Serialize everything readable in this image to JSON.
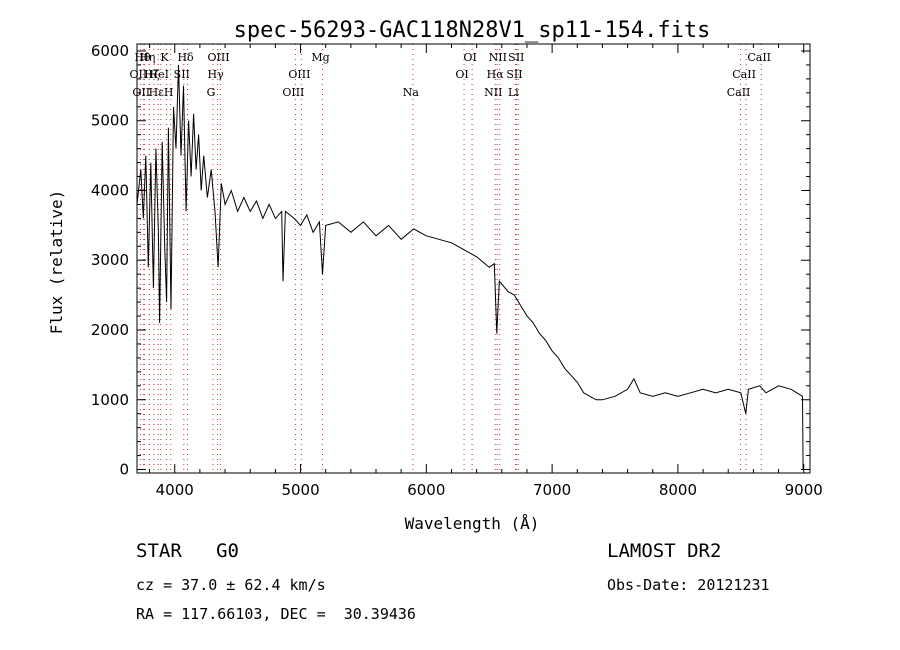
{
  "chart_data": {
    "type": "line",
    "title": "spec-56293-GAC118N28V1_sp11-154.fits",
    "xlabel": "Wavelength (Å)",
    "ylabel": "Flux (relative)",
    "xlim": [
      3700,
      9050
    ],
    "ylim": [
      -50,
      6100
    ],
    "xticks": [
      4000,
      5000,
      6000,
      7000,
      8000,
      9000
    ],
    "yticks": [
      0,
      1000,
      2000,
      3000,
      4000,
      5000,
      6000
    ],
    "grid": false,
    "series": [
      {
        "points": [
          [
            3700,
            3800
          ],
          [
            3730,
            4300
          ],
          [
            3750,
            3600
          ],
          [
            3770,
            4500
          ],
          [
            3790,
            2900
          ],
          [
            3810,
            4400
          ],
          [
            3830,
            2600
          ],
          [
            3850,
            4600
          ],
          [
            3870,
            3400
          ],
          [
            3880,
            2100
          ],
          [
            3900,
            4700
          ],
          [
            3920,
            3200
          ],
          [
            3935,
            2400
          ],
          [
            3950,
            4900
          ],
          [
            3970,
            2300
          ],
          [
            3990,
            5200
          ],
          [
            4010,
            4600
          ],
          [
            4030,
            5800
          ],
          [
            4050,
            4500
          ],
          [
            4070,
            5500
          ],
          [
            4090,
            3700
          ],
          [
            4110,
            5000
          ],
          [
            4130,
            4200
          ],
          [
            4150,
            5100
          ],
          [
            4170,
            4300
          ],
          [
            4190,
            4800
          ],
          [
            4210,
            4000
          ],
          [
            4230,
            4500
          ],
          [
            4260,
            3900
          ],
          [
            4290,
            4300
          ],
          [
            4320,
            3700
          ],
          [
            4345,
            2900
          ],
          [
            4370,
            4100
          ],
          [
            4400,
            3800
          ],
          [
            4450,
            4000
          ],
          [
            4500,
            3700
          ],
          [
            4550,
            3900
          ],
          [
            4600,
            3700
          ],
          [
            4650,
            3850
          ],
          [
            4700,
            3600
          ],
          [
            4750,
            3800
          ],
          [
            4800,
            3600
          ],
          [
            4850,
            3700
          ],
          [
            4861,
            2700
          ],
          [
            4880,
            3700
          ],
          [
            4950,
            3600
          ],
          [
            5000,
            3500
          ],
          [
            5050,
            3650
          ],
          [
            5100,
            3400
          ],
          [
            5150,
            3550
          ],
          [
            5175,
            2800
          ],
          [
            5200,
            3500
          ],
          [
            5300,
            3550
          ],
          [
            5400,
            3400
          ],
          [
            5500,
            3550
          ],
          [
            5600,
            3350
          ],
          [
            5700,
            3500
          ],
          [
            5800,
            3300
          ],
          [
            5900,
            3450
          ],
          [
            6000,
            3350
          ],
          [
            6100,
            3300
          ],
          [
            6200,
            3250
          ],
          [
            6300,
            3150
          ],
          [
            6400,
            3050
          ],
          [
            6500,
            2900
          ],
          [
            6540,
            2950
          ],
          [
            6560,
            1950
          ],
          [
            6580,
            2700
          ],
          [
            6650,
            2550
          ],
          [
            6700,
            2500
          ],
          [
            6750,
            2350
          ],
          [
            6800,
            2200
          ],
          [
            6850,
            2100
          ],
          [
            6900,
            1950
          ],
          [
            6950,
            1850
          ],
          [
            7000,
            1700
          ],
          [
            7050,
            1600
          ],
          [
            7100,
            1450
          ],
          [
            7150,
            1350
          ],
          [
            7200,
            1250
          ],
          [
            7250,
            1100
          ],
          [
            7300,
            1050
          ],
          [
            7350,
            1000
          ],
          [
            7400,
            1000
          ],
          [
            7500,
            1050
          ],
          [
            7600,
            1150
          ],
          [
            7650,
            1300
          ],
          [
            7700,
            1100
          ],
          [
            7800,
            1050
          ],
          [
            7900,
            1100
          ],
          [
            8000,
            1050
          ],
          [
            8100,
            1100
          ],
          [
            8200,
            1150
          ],
          [
            8300,
            1100
          ],
          [
            8400,
            1150
          ],
          [
            8500,
            1100
          ],
          [
            8540,
            800
          ],
          [
            8560,
            1150
          ],
          [
            8650,
            1200
          ],
          [
            8700,
            1100
          ],
          [
            8800,
            1200
          ],
          [
            8900,
            1150
          ],
          [
            8990,
            1050
          ],
          [
            8995,
            0
          ]
        ]
      }
    ],
    "line_markers": [
      {
        "wavelength": 3727,
        "label": "OII",
        "row": 1
      },
      {
        "wavelength": 3750,
        "label": "OII",
        "row": 2
      },
      {
        "wavelength": 3760,
        "label": "Hθ",
        "row": 0
      },
      {
        "wavelength": 3798,
        "label": "Hη",
        "row": 0
      },
      {
        "wavelength": 3835,
        "label": "Hζ",
        "row": 1
      },
      {
        "wavelength": 3869,
        "label": "Hε",
        "row": 2
      },
      {
        "wavelength": 3889,
        "label": "HeI",
        "row": 1
      },
      {
        "wavelength": 3934,
        "label": "K",
        "row": 0
      },
      {
        "wavelength": 3968,
        "label": "H",
        "row": 2
      },
      {
        "wavelength": 4072,
        "label": "SII",
        "row": 1
      },
      {
        "wavelength": 4102,
        "label": "Hδ",
        "row": 0
      },
      {
        "wavelength": 4304,
        "label": "G",
        "row": 2
      },
      {
        "wavelength": 4341,
        "label": "Hγ",
        "row": 1
      },
      {
        "wavelength": 4364,
        "label": "OIII",
        "row": 0
      },
      {
        "wavelength": 4959,
        "label": "OIII",
        "row": 2
      },
      {
        "wavelength": 5007,
        "label": "OIII",
        "row": 1
      },
      {
        "wavelength": 5175,
        "label": "Mg",
        "row": 0
      },
      {
        "wavelength": 5893,
        "label": "Na",
        "row": 2
      },
      {
        "wavelength": 6300,
        "label": "OI",
        "row": 1
      },
      {
        "wavelength": 6364,
        "label": "OI",
        "row": 0
      },
      {
        "wavelength": 6548,
        "label": "NII",
        "row": 2
      },
      {
        "wavelength": 6563,
        "label": "Hα",
        "row": 1
      },
      {
        "wavelength": 6584,
        "label": "NII",
        "row": 0
      },
      {
        "wavelength": 6717,
        "label": "SII",
        "row": 1
      },
      {
        "wavelength": 6708,
        "label": "Li",
        "row": 2
      },
      {
        "wavelength": 6731,
        "label": "SII",
        "row": 0
      },
      {
        "wavelength": 8498,
        "label": "CaII",
        "row": 2
      },
      {
        "wavelength": 8542,
        "label": "CaII",
        "row": 1
      },
      {
        "wavelength": 8662,
        "label": "CaII",
        "row": 0
      }
    ]
  },
  "footer": {
    "object_class": "STAR   G0",
    "survey": "LAMOST DR2",
    "redshift": "cz = 37.0 ± 62.4 km/s",
    "obs_date": "Obs-Date: 20121231",
    "radec": "RA = 117.66103, DEC =  30.39436"
  }
}
